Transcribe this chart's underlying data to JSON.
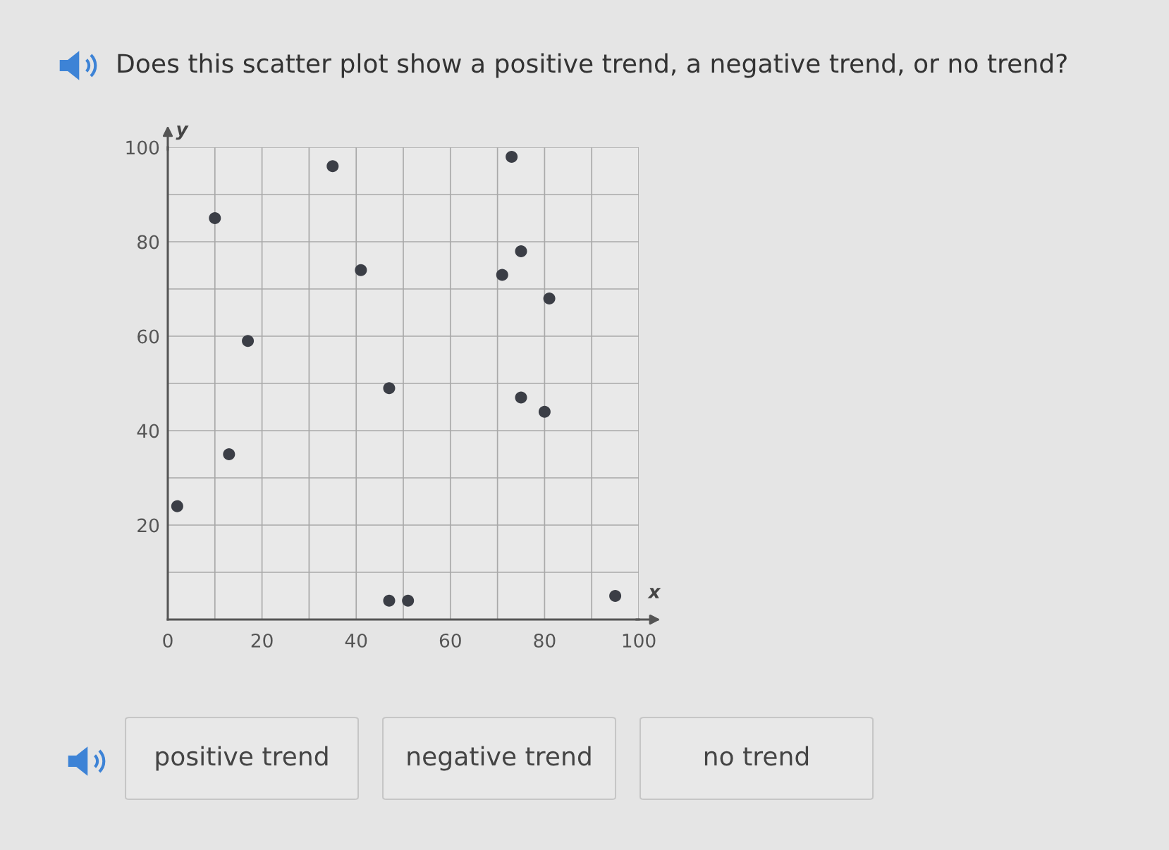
{
  "chart_data": {
    "type": "scatter",
    "title": "Does this scatter plot show a positive trend, a negative trend, or no trend?",
    "xlabel": "x",
    "ylabel": "y",
    "x": [
      2,
      10,
      13,
      17,
      35,
      41,
      47,
      47,
      51,
      71,
      73,
      75,
      75,
      80,
      81,
      95
    ],
    "series": [
      {
        "color": "#3b3e46",
        "values": [
          24,
          85,
          35,
          59,
          96,
          74,
          49,
          4,
          4,
          73,
          98,
          78,
          47,
          44,
          68,
          5
        ]
      }
    ],
    "marker": "circle",
    "grid": true,
    "xlim": [
      0,
      100
    ],
    "ylim": [
      0,
      100
    ],
    "xticks": [
      0,
      {
        "value": 10,
        "label": null
      },
      20,
      {
        "value": 30,
        "label": null
      },
      40,
      {
        "value": 50,
        "label": null
      },
      60,
      {
        "value": 70,
        "label": null
      },
      80,
      {
        "value": 90,
        "label": null
      },
      100
    ],
    "yticks": [
      {
        "value": 0,
        "label": null
      },
      {
        "value": 10,
        "label": null
      },
      20,
      {
        "value": 30,
        "label": null
      },
      40,
      {
        "value": 50,
        "label": null
      },
      60,
      {
        "value": 70,
        "label": null
      },
      80,
      {
        "value": 90,
        "label": null
      },
      100
    ],
    "annotations": [
      "positive trend",
      "negative trend",
      "no trend"
    ]
  }
}
